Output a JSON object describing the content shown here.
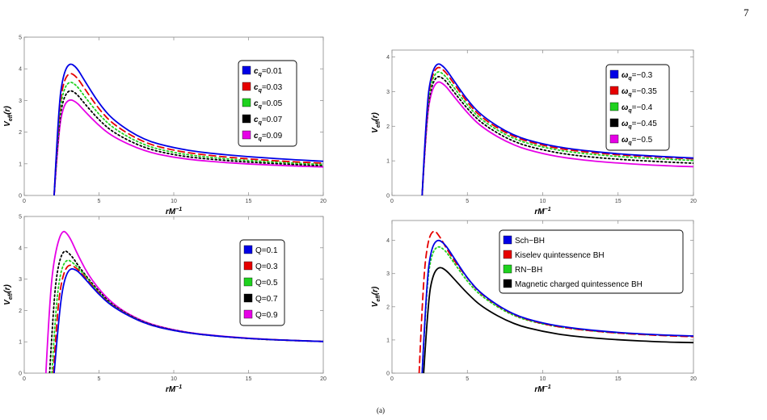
{
  "page_number": "7",
  "bottom_mark": "(a)",
  "chart_data": [
    {
      "type": "line",
      "xlabel": "rM",
      "xlabel_sup": "−1",
      "ylabel": "V",
      "ylabel_sub": "eff",
      "ylabel_arg": "(r)",
      "xlim": [
        0,
        20
      ],
      "ylim": [
        0,
        5
      ],
      "xticks": [
        0,
        5,
        10,
        15,
        20
      ],
      "yticks": [
        0,
        1,
        2,
        3,
        4,
        5
      ],
      "legend_position": "top-right",
      "legend_param": "c",
      "legend_param_sub": "q",
      "series": [
        {
          "name": "=0.01",
          "color": "#0000e6",
          "dash": "solid",
          "x": [
            2.0,
            2.3,
            2.6,
            3.0,
            3.5,
            4.0,
            5.0,
            6.0,
            8.0,
            10.0,
            12.0,
            15.0,
            18.0,
            20.0
          ],
          "y": [
            0.0,
            2.8,
            3.8,
            4.2,
            4.05,
            3.65,
            2.9,
            2.35,
            1.75,
            1.5,
            1.35,
            1.22,
            1.13,
            1.08
          ]
        },
        {
          "name": "=0.03",
          "color": "#e60000",
          "dash": "dashed",
          "x": [
            2.0,
            2.3,
            2.6,
            3.0,
            3.5,
            4.0,
            5.0,
            6.0,
            8.0,
            10.0,
            12.0,
            15.0,
            18.0,
            20.0
          ],
          "y": [
            0.0,
            2.6,
            3.55,
            3.9,
            3.75,
            3.4,
            2.72,
            2.22,
            1.66,
            1.42,
            1.28,
            1.15,
            1.06,
            1.02
          ]
        },
        {
          "name": "=0.05",
          "color": "#1fd21f",
          "dash": "dotted",
          "x": [
            2.0,
            2.3,
            2.6,
            3.0,
            3.5,
            4.0,
            5.0,
            6.0,
            8.0,
            10.0,
            12.0,
            15.0,
            18.0,
            20.0
          ],
          "y": [
            0.0,
            2.4,
            3.3,
            3.62,
            3.48,
            3.15,
            2.55,
            2.1,
            1.58,
            1.35,
            1.22,
            1.1,
            1.02,
            0.98
          ]
        },
        {
          "name": "=0.07",
          "color": "#000000",
          "dash": "dotted",
          "x": [
            2.0,
            2.3,
            2.6,
            3.0,
            3.5,
            4.0,
            5.0,
            6.0,
            8.0,
            10.0,
            12.0,
            15.0,
            18.0,
            20.0
          ],
          "y": [
            0.0,
            2.2,
            3.05,
            3.35,
            3.22,
            2.92,
            2.38,
            1.97,
            1.5,
            1.28,
            1.16,
            1.05,
            0.98,
            0.94
          ]
        },
        {
          "name": "=0.09",
          "color": "#e600e6",
          "dash": "solid",
          "x": [
            2.0,
            2.3,
            2.6,
            3.0,
            3.5,
            4.0,
            5.0,
            6.0,
            8.0,
            10.0,
            12.0,
            15.0,
            18.0,
            20.0
          ],
          "y": [
            0.0,
            2.0,
            2.8,
            3.05,
            2.95,
            2.68,
            2.2,
            1.83,
            1.4,
            1.2,
            1.09,
            0.99,
            0.93,
            0.9
          ]
        }
      ]
    },
    {
      "type": "line",
      "xlabel": "rM",
      "xlabel_sup": "−1",
      "ylabel": "V",
      "ylabel_sub": "eff",
      "ylabel_arg": "(r)",
      "xlim": [
        0,
        20
      ],
      "ylim": [
        0,
        4.2
      ],
      "xticks": [
        0,
        5,
        10,
        15,
        20
      ],
      "yticks": [
        0,
        1,
        2,
        3,
        4
      ],
      "legend_position": "top-right",
      "legend_param": "ω",
      "legend_param_sub": "q",
      "series": [
        {
          "name": "=−0.3",
          "color": "#0000e6",
          "dash": "solid",
          "x": [
            2.0,
            2.3,
            2.6,
            3.0,
            3.5,
            4.0,
            5.0,
            6.0,
            8.0,
            10.0,
            12.0,
            15.0,
            18.0,
            20.0
          ],
          "y": [
            0.0,
            2.6,
            3.5,
            3.85,
            3.7,
            3.38,
            2.75,
            2.28,
            1.73,
            1.48,
            1.33,
            1.2,
            1.12,
            1.08
          ]
        },
        {
          "name": "=−0.35",
          "color": "#e60000",
          "dash": "dashed",
          "x": [
            2.0,
            2.3,
            2.6,
            3.0,
            3.5,
            4.0,
            5.0,
            6.0,
            8.0,
            10.0,
            12.0,
            15.0,
            18.0,
            20.0
          ],
          "y": [
            0.0,
            2.5,
            3.4,
            3.75,
            3.6,
            3.3,
            2.68,
            2.22,
            1.69,
            1.44,
            1.29,
            1.17,
            1.1,
            1.06
          ]
        },
        {
          "name": "=−0.4",
          "color": "#1fd21f",
          "dash": "dotted",
          "x": [
            2.0,
            2.3,
            2.6,
            3.0,
            3.5,
            4.0,
            5.0,
            6.0,
            8.0,
            10.0,
            12.0,
            15.0,
            18.0,
            20.0
          ],
          "y": [
            0.0,
            2.4,
            3.28,
            3.62,
            3.48,
            3.18,
            2.6,
            2.15,
            1.63,
            1.39,
            1.24,
            1.12,
            1.05,
            1.01
          ]
        },
        {
          "name": "=−0.45",
          "color": "#000000",
          "dash": "dotted",
          "x": [
            2.0,
            2.3,
            2.6,
            3.0,
            3.5,
            4.0,
            5.0,
            6.0,
            8.0,
            10.0,
            12.0,
            15.0,
            18.0,
            20.0
          ],
          "y": [
            0.0,
            2.3,
            3.15,
            3.48,
            3.35,
            3.05,
            2.5,
            2.06,
            1.55,
            1.31,
            1.16,
            1.04,
            0.97,
            0.93
          ]
        },
        {
          "name": "=−0.5",
          "color": "#e600e6",
          "dash": "solid",
          "x": [
            2.0,
            2.3,
            2.6,
            3.0,
            3.5,
            4.0,
            5.0,
            6.0,
            8.0,
            10.0,
            12.0,
            15.0,
            18.0,
            20.0
          ],
          "y": [
            0.0,
            2.2,
            3.0,
            3.32,
            3.2,
            2.92,
            2.38,
            1.95,
            1.45,
            1.2,
            1.05,
            0.93,
            0.86,
            0.83
          ]
        }
      ]
    },
    {
      "type": "line",
      "xlabel": "rM",
      "xlabel_sup": "−1",
      "ylabel": "V",
      "ylabel_sub": "eff",
      "ylabel_arg": "(r)",
      "xlim": [
        0,
        20
      ],
      "ylim": [
        0,
        5
      ],
      "xticks": [
        0,
        5,
        10,
        15,
        20
      ],
      "yticks": [
        0,
        1,
        2,
        3,
        4,
        5
      ],
      "legend_position": "top-right",
      "series": [
        {
          "name": "Q=0.1",
          "color": "#0000e6",
          "dash": "solid",
          "x": [
            2.0,
            2.3,
            2.6,
            3.0,
            3.5,
            4.0,
            5.0,
            6.0,
            8.0,
            10.0,
            12.0,
            15.0,
            18.0,
            20.0
          ],
          "y": [
            0.0,
            1.7,
            2.85,
            3.35,
            3.3,
            3.05,
            2.5,
            2.08,
            1.58,
            1.35,
            1.22,
            1.1,
            1.04,
            1.01
          ]
        },
        {
          "name": "Q=0.3",
          "color": "#e60000",
          "dash": "dashed",
          "x": [
            1.95,
            2.2,
            2.5,
            2.9,
            3.4,
            4.0,
            5.0,
            6.0,
            8.0,
            10.0,
            12.0,
            15.0,
            18.0,
            20.0
          ],
          "y": [
            0.0,
            1.9,
            3.0,
            3.48,
            3.4,
            3.1,
            2.52,
            2.09,
            1.58,
            1.35,
            1.22,
            1.1,
            1.04,
            1.01
          ]
        },
        {
          "name": "Q=0.5",
          "color": "#1fd21f",
          "dash": "dotted",
          "x": [
            1.85,
            2.1,
            2.4,
            2.8,
            3.3,
            4.0,
            5.0,
            6.0,
            8.0,
            10.0,
            12.0,
            15.0,
            18.0,
            20.0
          ],
          "y": [
            0.0,
            2.0,
            3.2,
            3.65,
            3.52,
            3.15,
            2.55,
            2.1,
            1.59,
            1.35,
            1.22,
            1.1,
            1.04,
            1.01
          ]
        },
        {
          "name": "Q=0.7",
          "color": "#000000",
          "dash": "dotted",
          "x": [
            1.7,
            1.95,
            2.2,
            2.6,
            3.1,
            3.8,
            5.0,
            6.0,
            8.0,
            10.0,
            12.0,
            15.0,
            18.0,
            20.0
          ],
          "y": [
            0.0,
            2.1,
            3.3,
            3.95,
            3.8,
            3.3,
            2.6,
            2.12,
            1.6,
            1.36,
            1.22,
            1.1,
            1.04,
            1.01
          ]
        },
        {
          "name": "Q=0.9",
          "color": "#e600e6",
          "dash": "solid",
          "x": [
            1.45,
            1.7,
            2.0,
            2.5,
            3.0,
            3.6,
            4.5,
            6.0,
            8.0,
            10.0,
            12.0,
            15.0,
            18.0,
            20.0
          ],
          "y": [
            0.0,
            2.3,
            3.7,
            4.6,
            4.4,
            3.75,
            2.95,
            2.15,
            1.62,
            1.37,
            1.23,
            1.11,
            1.04,
            1.01
          ]
        }
      ]
    },
    {
      "type": "line",
      "xlabel": "rM",
      "xlabel_sup": "−1",
      "ylabel": "V",
      "ylabel_sub": "eff",
      "ylabel_arg": "(r)",
      "xlim": [
        0,
        20
      ],
      "ylim": [
        0,
        4.6
      ],
      "xticks": [
        0,
        5,
        10,
        15,
        20
      ],
      "yticks": [
        0,
        1,
        2,
        3,
        4
      ],
      "legend_position": "top-right",
      "series": [
        {
          "name": "Sch−BH",
          "color": "#0000e6",
          "dash": "solid",
          "x": [
            2.0,
            2.3,
            2.6,
            3.0,
            3.5,
            4.0,
            5.0,
            6.0,
            8.0,
            10.0,
            12.0,
            15.0,
            18.0,
            20.0
          ],
          "y": [
            0.0,
            2.75,
            3.75,
            4.05,
            3.9,
            3.55,
            2.85,
            2.35,
            1.76,
            1.5,
            1.35,
            1.22,
            1.15,
            1.12
          ]
        },
        {
          "name": "Kiselev quintessence BH",
          "color": "#e60000",
          "dash": "dashed",
          "x": [
            1.8,
            2.05,
            2.35,
            2.75,
            3.2,
            3.8,
            5.0,
            6.0,
            8.0,
            10.0,
            12.0,
            15.0,
            18.0,
            20.0
          ],
          "y": [
            0.0,
            2.6,
            3.95,
            4.35,
            4.1,
            3.6,
            2.85,
            2.33,
            1.75,
            1.48,
            1.33,
            1.2,
            1.13,
            1.1
          ]
        },
        {
          "name": "RN−BH",
          "color": "#1fd21f",
          "dash": "dotted",
          "x": [
            2.0,
            2.3,
            2.6,
            3.0,
            3.5,
            4.0,
            5.0,
            6.0,
            8.0,
            10.0,
            12.0,
            15.0,
            18.0,
            20.0
          ],
          "y": [
            0.0,
            2.6,
            3.55,
            3.85,
            3.72,
            3.4,
            2.75,
            2.28,
            1.72,
            1.47,
            1.33,
            1.2,
            1.14,
            1.11
          ]
        },
        {
          "name": "Magnetic charged quintessence BH",
          "color": "#000000",
          "dash": "solid",
          "x": [
            2.1,
            2.4,
            2.7,
            3.1,
            3.6,
            4.2,
            5.0,
            6.0,
            8.0,
            10.0,
            12.0,
            15.0,
            18.0,
            20.0
          ],
          "y": [
            0.0,
            2.2,
            2.95,
            3.22,
            3.1,
            2.8,
            2.4,
            1.98,
            1.48,
            1.25,
            1.11,
            1.0,
            0.94,
            0.92
          ]
        }
      ]
    }
  ]
}
